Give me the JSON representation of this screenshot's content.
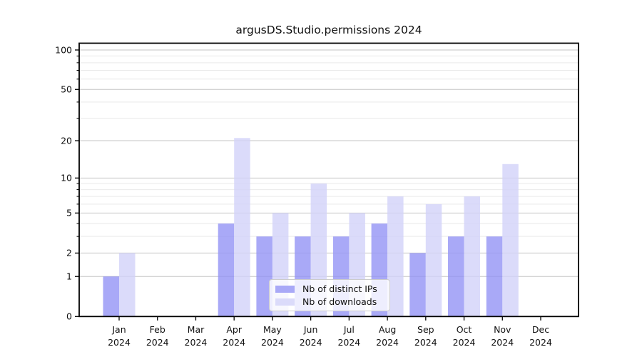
{
  "chart_data": {
    "type": "bar",
    "title": "argusDS.Studio.permissions 2024",
    "categories": [
      "Jan",
      "Feb",
      "Mar",
      "Apr",
      "May",
      "Jun",
      "Jul",
      "Aug",
      "Sep",
      "Oct",
      "Nov",
      "Dec"
    ],
    "category_year": "2024",
    "series": [
      {
        "name": "Nb of distinct IPs",
        "color": "#a9a9f7",
        "color_rgba": "rgba(148,148,245,0.8)",
        "values": [
          1,
          0,
          0,
          4,
          3,
          3,
          3,
          4,
          2,
          3,
          3,
          0
        ]
      },
      {
        "name": "Nb of downloads",
        "color": "#dbdbfa",
        "color_rgba": "rgba(210,210,249,0.8)",
        "values": [
          2,
          0,
          0,
          21,
          5,
          9,
          5,
          7,
          6,
          7,
          13,
          0
        ]
      }
    ],
    "y_axis": {
      "scale": "log1p",
      "major_ticks": [
        0,
        1,
        2,
        5,
        10,
        20,
        50,
        100
      ],
      "minor_ticks": [
        3,
        4,
        6,
        7,
        8,
        9,
        30,
        40,
        60,
        70,
        80,
        90
      ],
      "ylim": [
        0,
        113
      ]
    },
    "x_axis": {
      "tick_line1": [
        "Jan",
        "Feb",
        "Mar",
        "Apr",
        "May",
        "Jun",
        "Jul",
        "Aug",
        "Sep",
        "Oct",
        "Nov",
        "Dec"
      ],
      "tick_line2": "2024"
    },
    "legend": {
      "position": "lower-center"
    },
    "grid": true,
    "colors": {
      "major_gridline": "#c6c6c6",
      "minor_gridline": "#e9e9e9",
      "axis": "#000000",
      "text": "#111111",
      "background": "#ffffff"
    }
  }
}
